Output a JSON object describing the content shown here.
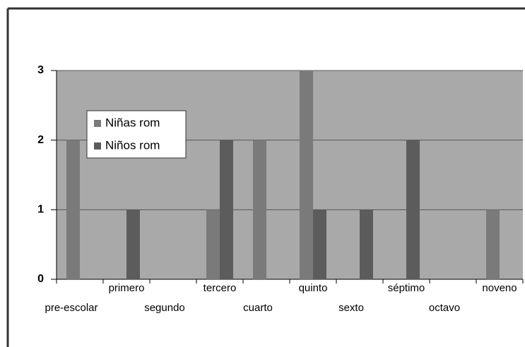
{
  "chart_data": {
    "type": "bar",
    "categories": [
      "pre-escolar",
      "primero",
      "segundo",
      "tercero",
      "cuarto",
      "quinto",
      "sexto",
      "séptimo",
      "octavo",
      "noveno"
    ],
    "series": [
      {
        "name": "Niñas rom",
        "color": "#7a7a7a",
        "values": [
          2,
          0,
          0,
          1,
          2,
          3,
          0,
          0,
          0,
          1
        ]
      },
      {
        "name": "Niños rom",
        "color": "#5c5c5c",
        "values": [
          0,
          1,
          0,
          2,
          0,
          1,
          1,
          2,
          0,
          0
        ]
      }
    ],
    "ylim": [
      0,
      3
    ],
    "yticks": [
      0,
      1,
      2,
      3
    ],
    "grid": true,
    "legend": "upper left"
  }
}
